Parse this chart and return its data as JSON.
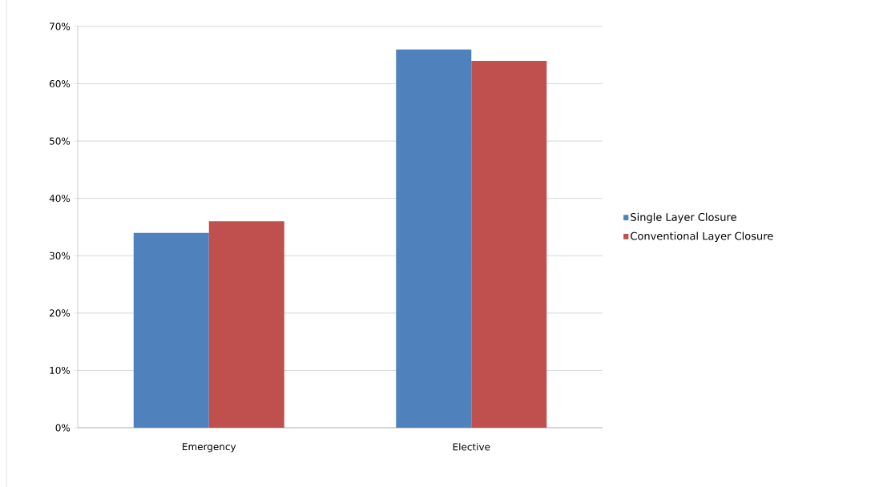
{
  "chart_data": {
    "type": "bar",
    "categories": [
      "Emergency",
      "Elective"
    ],
    "series": [
      {
        "name": "Single Layer Closure",
        "color": "#4f81bd",
        "values": [
          34,
          66
        ]
      },
      {
        "name": "Conventional Layer Closure",
        "color": "#c0504d",
        "values": [
          36,
          64
        ]
      }
    ],
    "ylim": [
      0,
      70
    ],
    "yticks": [
      {
        "value": 0,
        "label": "0%"
      },
      {
        "value": 10,
        "label": "10%"
      },
      {
        "value": 20,
        "label": "20%"
      },
      {
        "value": 30,
        "label": "30%"
      },
      {
        "value": 40,
        "label": "40%"
      },
      {
        "value": 50,
        "label": "50%"
      },
      {
        "value": 60,
        "label": "60%"
      },
      {
        "value": 70,
        "label": "70%"
      }
    ],
    "grid": "y",
    "legend": "right"
  }
}
